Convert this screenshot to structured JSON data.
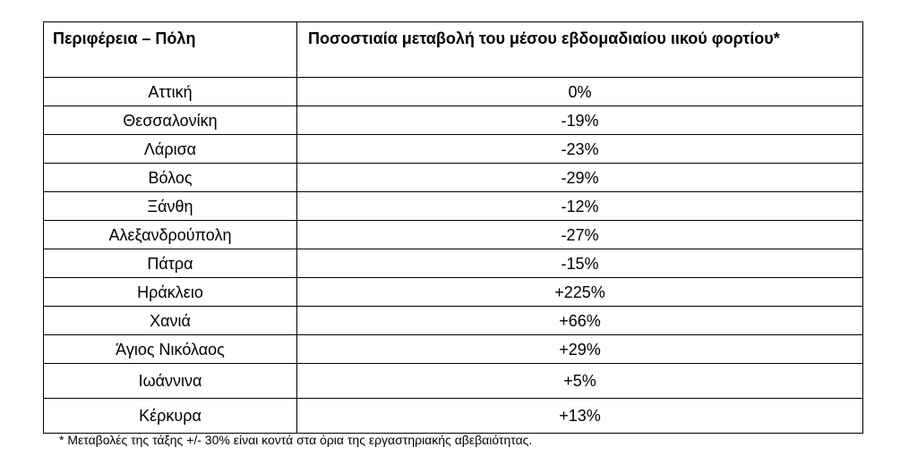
{
  "table": {
    "headers": {
      "region": "Περιφέρεια – Πόλη",
      "change": "Ποσοστιαία μεταβολή του μέσου εβδομαδιαίου ιικού φορτίου*"
    },
    "rows": [
      {
        "region": "Αττική",
        "change": "0%"
      },
      {
        "region": "Θεσσαλονίκη",
        "change": "-19%"
      },
      {
        "region": "Λάρισα",
        "change": "-23%"
      },
      {
        "region": "Βόλος",
        "change": "-29%"
      },
      {
        "region": "Ξάνθη",
        "change": "-12%"
      },
      {
        "region": "Αλεξανδρούπολη",
        "change": "-27%"
      },
      {
        "region": "Πάτρα",
        "change": "-15%"
      },
      {
        "region": "Ηράκλειο",
        "change": "+225%"
      },
      {
        "region": "Χανιά",
        "change": "+66%"
      },
      {
        "region": "Άγιος Νικόλαος",
        "change": "+29%"
      },
      {
        "region": "Ιωάννινα",
        "change": "+5%"
      },
      {
        "region": "Κέρκυρα",
        "change": "+13%"
      }
    ]
  },
  "footnote": "* Μεταβολές της τάξης +/- 30% είναι κοντά στα όρια της εργαστηριακής αβεβαιότητας."
}
